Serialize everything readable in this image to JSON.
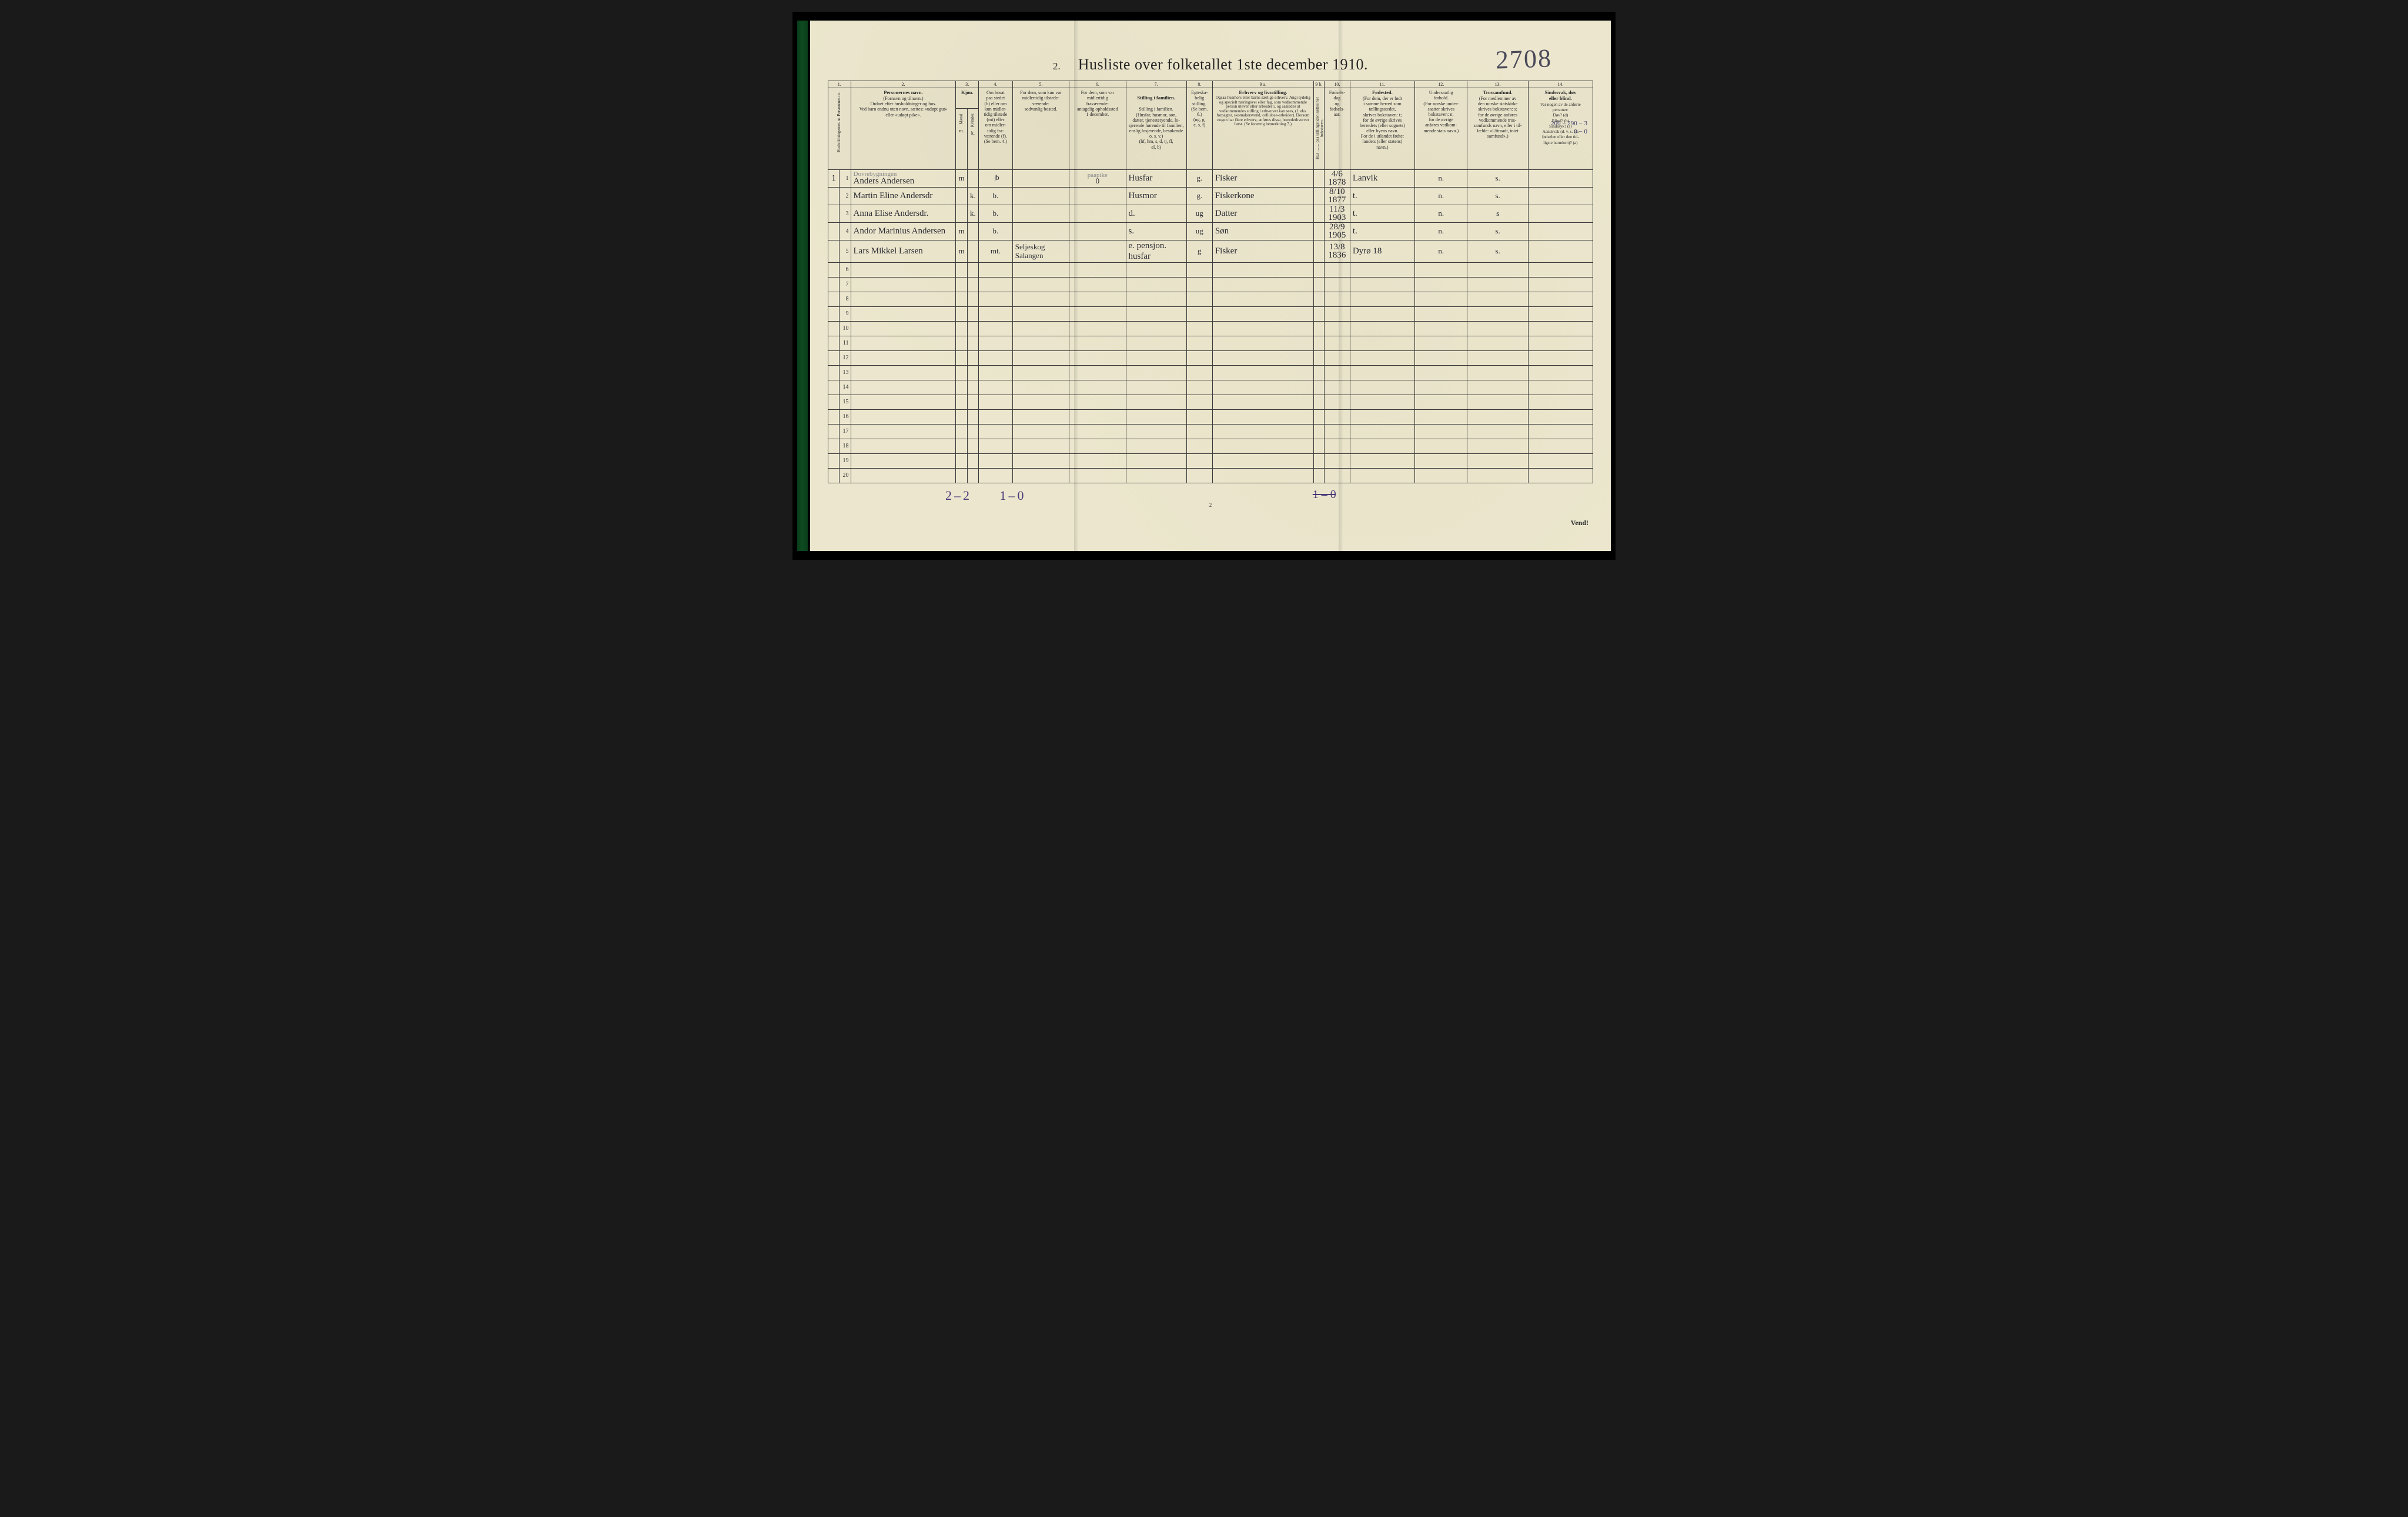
{
  "document": {
    "title_number": "2.",
    "title": "Husliste over folketallet 1ste december 1910.",
    "handwritten_page_number": "2708",
    "foot_page_number": "2",
    "vend": "Vend!",
    "margin_note_line1": "200 − 290 − 3",
    "margin_note_line2": "0 − 0"
  },
  "columns": {
    "nums": [
      "1.",
      "2.",
      "3.",
      "4.",
      "5.",
      "6.",
      "7.",
      "8.",
      "9 a.",
      "9 b.",
      "10.",
      "11.",
      "12.",
      "13.",
      "14."
    ],
    "c1_label": "Husholdningernes nr.\nPersonenes nr.",
    "c2": "Personernes navn.\n(Fornavn og tilnavn.)\nOrdnet efter husholdninger og hus.\nVed barn endnu uten navn, sættes: «udøpt gut»\neller «udøpt pike».",
    "c3_header": "Kjøn.",
    "c3_sub": "Mænd.  Kvinder.\nm.  k.",
    "c4": "Om bosat\npaa stedet\n(b) eller om\nkun midler-\ntidig tilstede\n(mt) eller\nom midler-\ntidig fra-\nværende (f).\n(Se bem. 4.)",
    "c5": "For dem, som kun var\nmidlertidig tilstede-\nværende:\nsedvanlig bosted.",
    "c6": "For dem, som var\nmidlertidig\nfraværende:\nantagelig opholdssted\n1 december.",
    "c7": "Stilling i familien.\n(Husfar, husmor, søn,\ndatter, tjenestetyende, lo-\nsjerende hørende til familien,\nenslig losjerende, besøkende\no. s. v.)\n(hf, hm, s, d, tj, fl,\nel, b)",
    "c8": "Egteska-\nbelig\nstilling.\n(Se bem. 6.)\n(ug, g,\ne, s, f)",
    "c9a_title": "Erhverv og livsstilling.",
    "c9a": "Ogsaa husmors eller barns særlige erhverv.\nAngi tydelig og specielt næringsvei eller fag, som vedkommende person utøver eller arbeider i, og saaledes at vedkommendes stilling i erhvervet kan sees, (f. eks. forpagter, skomakersvend, cellulose-arbeider). Dersom nogen har flere erhverv, anføres disse, hovederhvervet først.\n(Se forøvrig bemerkning 7.)",
    "c9b": "Hus ……\npaa tællingstiden sættes\nher bokstaven.",
    "c10": "Fødsels-\ndag\nog\nfødsels-\naar.",
    "c11_title": "Fødested.",
    "c11": "(For dem, der er født\ni samme herred som\ntællingsstedet,\nskrives bokstaven: t;\nfor de øvrige skrives\nherredets (eller sognets)\neller byens navn.\nFor de i utlandet fødte:\nlandets (eller statens)\nnavn.)",
    "c12": "Undersaatlig\nforhold.\n(For norske under-\nsaatter skrives\nbokstaven: n;\nfor de øvrige\nanføres vedkom-\nmende stats navn.)",
    "c13_title": "Trossamfund.",
    "c13": "(For medlemmer av\nden norske statskirke\nskrives bokstaven: s;\nfor de øvrige anføres\nvedkommende tros-\nsamfunds navn, eller i til-\nfælde: «Uttraadt, intet\nsamfund».)",
    "c14_title": "Sindssvak, døv\neller blind.",
    "c14": "Var nogen av de anførte\npersoner:\nDøv?      (d)\nBlind?    (b)\nSindssyk? (s)\nAandsvak (d. v. s. fra\nfødselen eller den tid-\nligste barndom)?  (a)"
  },
  "rows": [
    {
      "row": 1,
      "hh": "1",
      "name_pencil": "Dovrebygningen",
      "name": "Anders Andersen",
      "sex": "m",
      "status_under": "f",
      "status_over": "b",
      "col5": "",
      "col6_pencil": "paapike",
      "col6": "0",
      "col7": "Husfar",
      "col8": "g.",
      "col9": "Fisker",
      "col10": "4/6 1878",
      "col11": "Lanvik",
      "col12": "n.",
      "col13": "s."
    },
    {
      "row": 2,
      "hh": "",
      "name": "Martin Eline Andersdr",
      "sex": "k.",
      "status": "b.",
      "col7": "Husmor",
      "col8": "g.",
      "col9": "Fiskerkone",
      "col10": "8/10 1877",
      "col11": "t.",
      "col12": "n.",
      "col13": "s."
    },
    {
      "row": 3,
      "hh": "",
      "name": "Anna Elise Andersdr.",
      "sex": "k.",
      "status": "b.",
      "col7": "d.",
      "col8": "ug",
      "col9": "Datter",
      "col10": "11/3 1903",
      "col11": "t.",
      "col12": "n.",
      "col13": "s"
    },
    {
      "row": 4,
      "hh": "",
      "name": "Andor Marinius Andersen",
      "sex": "m",
      "status": "b.",
      "col7": "s.",
      "col8": "ug",
      "col9": "Søn",
      "col10": "28/9 1905",
      "col11": "t.",
      "col12": "n.",
      "col13": "s."
    },
    {
      "row": 5,
      "hh": "",
      "name": "Lars Mikkel Larsen",
      "sex": "m",
      "status": "mt.",
      "col5": "Seljeskog\nSalangen",
      "col7_line1": "e. pensjon.",
      "col7_line2": "husfar",
      "col8": "g",
      "col9": "Fisker",
      "col10": "13/8 1836",
      "col11": "Dyrø 18",
      "col12": "n.",
      "col13": "s."
    }
  ],
  "tallies": {
    "t1": "2–2",
    "t2": "1–0",
    "strike": "1 – 0"
  },
  "style": {
    "paper_bg": "#ebe6cd",
    "ink": "#2b2b33",
    "rule": "#3a3a3a",
    "pencil": "#8a8a8a",
    "blue_pencil": "#3a3a7a",
    "hand_number": "#4a4a5a"
  }
}
